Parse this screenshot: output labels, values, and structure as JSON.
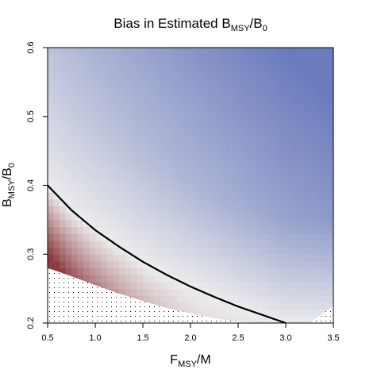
{
  "chart_data": {
    "type": "heatmap",
    "title": {
      "prefix": "Bias in Estimated B",
      "sub1": "MSY",
      "mid": "/B",
      "sub2": "0"
    },
    "xlabel": {
      "main": "F",
      "sub": "MSY",
      "rest": "/M"
    },
    "ylabel": {
      "main": "B",
      "sub": "MSY",
      "mid": "/B",
      "sub2": "0"
    },
    "xlim": [
      0.5,
      3.5
    ],
    "ylim": [
      0.2,
      0.6
    ],
    "x_ticks": [
      "0.5",
      "1.0",
      "1.5",
      "2.0",
      "2.5",
      "3.0",
      "3.5"
    ],
    "y_ticks": [
      "0.2",
      "0.3",
      "0.4",
      "0.5",
      "0.6"
    ],
    "grid": false,
    "legend": "none",
    "colors": {
      "positive_bias": "#6b7bbd",
      "neutral": "#ececec",
      "negative_bias": "#8e3c42",
      "curve": "#000000",
      "hatch_dots": "#000000"
    },
    "reference_curve": {
      "x": [
        0.5,
        0.75,
        1.0,
        1.25,
        1.5,
        1.75,
        2.0,
        2.25,
        2.5,
        2.75,
        3.0
      ],
      "y": [
        0.4,
        0.364,
        0.335,
        0.311,
        0.289,
        0.27,
        0.253,
        0.238,
        0.224,
        0.212,
        0.2
      ]
    },
    "infeasible_boundary": {
      "x": [
        0.5,
        0.75,
        1.0,
        1.25,
        1.5,
        1.75,
        2.0,
        2.25,
        2.5,
        2.75,
        3.0,
        3.25,
        3.5
      ],
      "y": [
        0.28,
        0.268,
        0.255,
        0.243,
        0.232,
        0.222,
        0.214,
        0.207,
        0.202,
        0.2,
        0.2,
        0.2,
        0.225
      ]
    }
  }
}
